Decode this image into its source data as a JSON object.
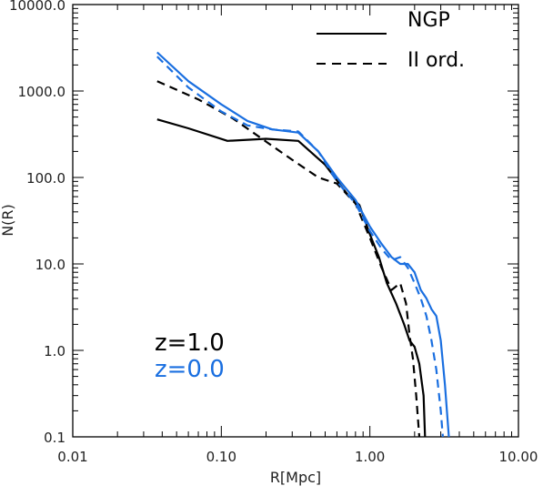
{
  "chart_data": {
    "type": "line",
    "xlabel": "R[Mpc]",
    "ylabel": "N(R)",
    "xscale": "log",
    "yscale": "log",
    "xlim": [
      0.01,
      10.0
    ],
    "ylim": [
      0.1,
      10000.0
    ],
    "x_ticks": [
      {
        "value": 0.01,
        "label": "0.01"
      },
      {
        "value": 0.1,
        "label": "0.10"
      },
      {
        "value": 1.0,
        "label": "1.00"
      },
      {
        "value": 10.0,
        "label": "10.00"
      }
    ],
    "y_ticks": [
      {
        "value": 0.1,
        "label": "0.1"
      },
      {
        "value": 1.0,
        "label": "1.0"
      },
      {
        "value": 10.0,
        "label": "10.0"
      },
      {
        "value": 100.0,
        "label": "100.0"
      },
      {
        "value": 1000.0,
        "label": "1000.0"
      },
      {
        "value": 10000.0,
        "label": "10000.0"
      }
    ],
    "grid": false,
    "legend": {
      "placement": "top-right",
      "entries": [
        {
          "label": "NGP",
          "style": "solid"
        },
        {
          "label": "II ord.",
          "style": "dashed"
        }
      ]
    },
    "annotations": [
      {
        "text": "z=1.0",
        "color": "#000000"
      },
      {
        "text": "z=0.0",
        "color": "#1a6fe0"
      }
    ],
    "series": [
      {
        "redshift": "z=1.0",
        "scheme": "NGP",
        "color": "#000000",
        "style": "solid",
        "x": [
          0.037,
          0.06,
          0.11,
          0.2,
          0.33,
          0.5,
          0.7,
          0.85,
          1.0,
          1.15,
          1.3,
          1.5,
          1.7,
          1.85,
          2.0,
          2.15,
          2.3,
          2.35
        ],
        "y": [
          470,
          370,
          265,
          280,
          265,
          140,
          65,
          48,
          22,
          12,
          6,
          3.5,
          2.0,
          1.3,
          1.1,
          0.7,
          0.3,
          0.1
        ]
      },
      {
        "redshift": "z=1.0",
        "scheme": "II ord.",
        "color": "#000000",
        "style": "dashed",
        "x": [
          0.037,
          0.07,
          0.12,
          0.2,
          0.3,
          0.45,
          0.6,
          0.8,
          1.0,
          1.2,
          1.4,
          1.6,
          1.75,
          1.85,
          1.95,
          2.05,
          2.15
        ],
        "y": [
          1300,
          800,
          480,
          260,
          160,
          100,
          85,
          50,
          20,
          9,
          5,
          6,
          3.5,
          1.5,
          0.8,
          0.3,
          0.1
        ]
      },
      {
        "redshift": "z=0.0",
        "scheme": "NGP",
        "color": "#1a6fe0",
        "style": "solid",
        "x": [
          0.037,
          0.06,
          0.1,
          0.15,
          0.22,
          0.33,
          0.45,
          0.6,
          0.8,
          1.0,
          1.2,
          1.4,
          1.6,
          1.8,
          2.0,
          2.2,
          2.4,
          2.6,
          2.8,
          3.0,
          3.2,
          3.4
        ],
        "y": [
          2800,
          1300,
          700,
          450,
          360,
          330,
          200,
          100,
          55,
          27,
          17,
          12,
          10,
          10,
          8,
          5,
          4,
          3,
          2.5,
          1.3,
          0.4,
          0.1
        ]
      },
      {
        "redshift": "z=0.0",
        "scheme": "II ord.",
        "color": "#1a6fe0",
        "style": "dashed",
        "x": [
          0.037,
          0.06,
          0.1,
          0.15,
          0.22,
          0.33,
          0.45,
          0.6,
          0.8,
          1.0,
          1.2,
          1.4,
          1.6,
          1.8,
          2.0,
          2.2,
          2.4,
          2.6,
          2.8,
          3.0,
          3.1
        ],
        "y": [
          2500,
          1100,
          580,
          400,
          360,
          340,
          200,
          90,
          50,
          24,
          15,
          11,
          12,
          9,
          6,
          4,
          2.5,
          1.3,
          0.6,
          0.2,
          0.1
        ]
      }
    ]
  }
}
